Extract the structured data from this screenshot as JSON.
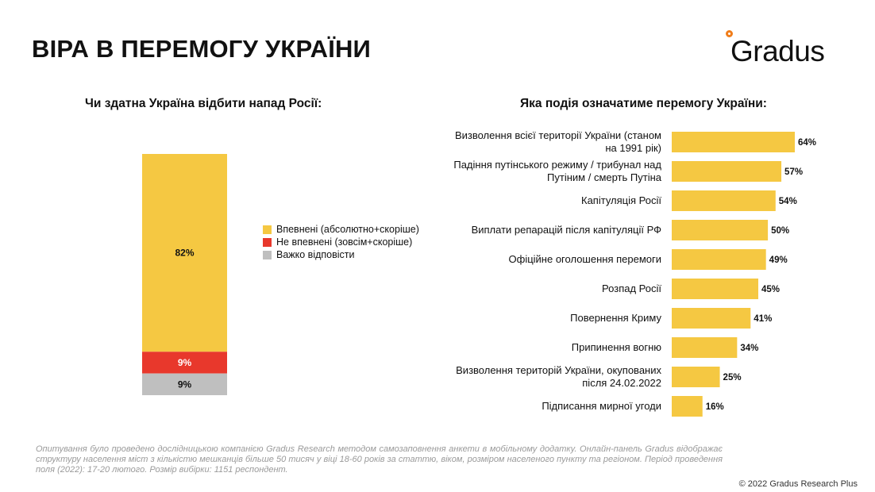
{
  "header": {
    "title": "ВІРА В ПЕРЕМОГУ УКРАЇНИ",
    "logo_text": "Gradus"
  },
  "colors": {
    "yellow": "#f5c842",
    "red": "#e8382c",
    "gray": "#bfbfbf",
    "logo_dot": "#f07d1a"
  },
  "chart_data": [
    {
      "type": "bar",
      "stacked": true,
      "title": "Чи здатна Україна відбити напад Росії:",
      "categories": [
        ""
      ],
      "series": [
        {
          "name": "Впевнені (абсолютно+скоріше)",
          "values": [
            82
          ],
          "color": "#f5c842",
          "label": "82%"
        },
        {
          "name": "Не впевнені (зовсім+скоріше)",
          "values": [
            9
          ],
          "color": "#e8382c",
          "label": "9%"
        },
        {
          "name": "Важко відповісти",
          "values": [
            9
          ],
          "color": "#bfbfbf",
          "label": "9%"
        }
      ],
      "legend": "right"
    },
    {
      "type": "bar",
      "orientation": "horizontal",
      "title": "Яка подія означатиме перемогу України:",
      "categories": [
        "Визволення всієї території України (станом на 1991 рік)",
        "Падіння путінського режиму / трибунал над Путіним / смерть Путіна",
        "Капітуляція Росії",
        "Виплати репарацій після капітуляції РФ",
        "Офіційне оголошення перемоги",
        "Розпад Росії",
        "Повернення Криму",
        "Припинення вогню",
        "Визволення територій України, окупованих після 24.02.2022",
        "Підписання мирної угоди"
      ],
      "category_lines": [
        [
          "Визволення всієї території України (станом",
          "на 1991 рік)"
        ],
        [
          "Падіння путінського режиму / трибунал над",
          "Путіним / смерть Путіна"
        ],
        [
          "Капітуляція Росії"
        ],
        [
          "Виплати репарацій після капітуляції РФ"
        ],
        [
          "Офіційне оголошення перемоги"
        ],
        [
          "Розпад Росії"
        ],
        [
          "Повернення Криму"
        ],
        [
          "Припинення вогню"
        ],
        [
          "Визволення територій України, окупованих",
          "після 24.02.2022"
        ],
        [
          "Підписання мирної угоди"
        ]
      ],
      "values": [
        64,
        57,
        54,
        50,
        49,
        45,
        41,
        34,
        25,
        16
      ],
      "value_labels": [
        "64%",
        "57%",
        "54%",
        "50%",
        "49%",
        "45%",
        "41%",
        "34%",
        "25%",
        "16%"
      ],
      "color": "#f5c842"
    }
  ],
  "footnote": "Опитування було проведено дослідницькою компанією Gradus Research методом самозаповнення анкети в мобільному додатку. Онлайн-панель Gradus відображає структуру населення міст з кількістю мешканців більше 50 тисяч у віці 18-60 років за статтю, віком, розміром населеного пункту та регіоном. Період проведення поля (2022): 17-20 лютого. Розмір вибірки: 1151 респондент.",
  "copyright": "© 2022 Gradus Research Plus"
}
